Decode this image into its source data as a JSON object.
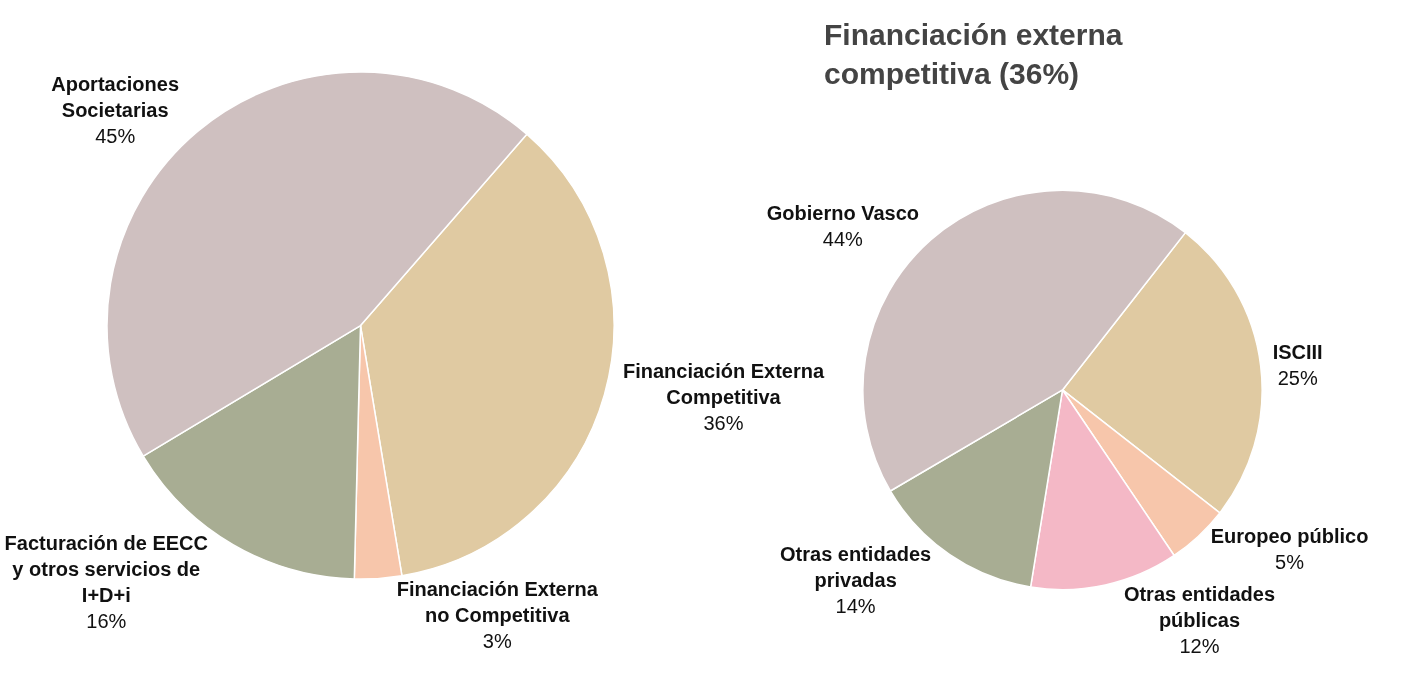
{
  "chart_data": [
    {
      "type": "pie",
      "categories": [
        "Financiación Externa Competitiva",
        "Financiación Externa no Competitiva",
        "Facturación de EECC y otros servicios de I+D+i",
        "Aportaciones Societarias"
      ],
      "values": [
        36,
        3,
        16,
        45
      ],
      "value_labels": [
        "36%",
        "3%",
        "16%",
        "45%"
      ],
      "colors": [
        "#e0caa2",
        "#f7c6ab",
        "#a8ad93",
        "#cfc0c0"
      ],
      "legend": false
    },
    {
      "type": "pie",
      "title": "Financiación externa competitiva (36%)",
      "categories": [
        "ISCIII",
        "Europeo público",
        "Otras entidades públicas",
        "Otras entidades privadas",
        "Gobierno Vasco"
      ],
      "values": [
        25,
        5,
        12,
        14,
        44
      ],
      "value_labels": [
        "25%",
        "5%",
        "12%",
        "14%",
        "44%"
      ],
      "colors": [
        "#e0caa2",
        "#f7c6ab",
        "#f4b8c6",
        "#a8ad93",
        "#cfc0c0"
      ],
      "legend": false
    }
  ]
}
